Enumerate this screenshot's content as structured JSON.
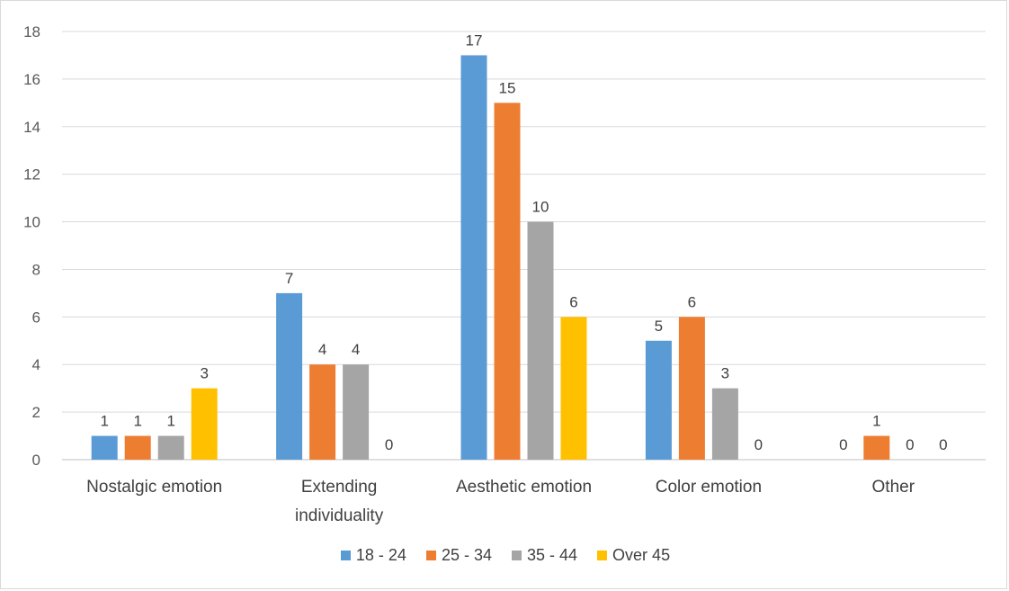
{
  "chart_data": {
    "type": "bar",
    "title": "",
    "xlabel": "",
    "ylabel": "",
    "ylim": [
      0,
      18
    ],
    "yticks": [
      0,
      2,
      4,
      6,
      8,
      10,
      12,
      14,
      16,
      18
    ],
    "grid": true,
    "legend_position": "bottom",
    "categories": [
      [
        "Nostalgic emotion"
      ],
      [
        "Extending",
        "individuality"
      ],
      [
        "Aesthetic emotion"
      ],
      [
        "Color emotion"
      ],
      [
        "Other"
      ]
    ],
    "series": [
      {
        "name": "18 - 24",
        "color": "#5B9BD5",
        "values": [
          1,
          7,
          17,
          5,
          0
        ]
      },
      {
        "name": "25 - 34",
        "color": "#ED7D31",
        "values": [
          1,
          4,
          15,
          6,
          1
        ]
      },
      {
        "name": "35 - 44",
        "color": "#A5A5A5",
        "values": [
          1,
          4,
          10,
          3,
          0
        ]
      },
      {
        "name": "Over 45",
        "color": "#FFC000",
        "values": [
          3,
          0,
          6,
          0,
          0
        ]
      }
    ]
  }
}
